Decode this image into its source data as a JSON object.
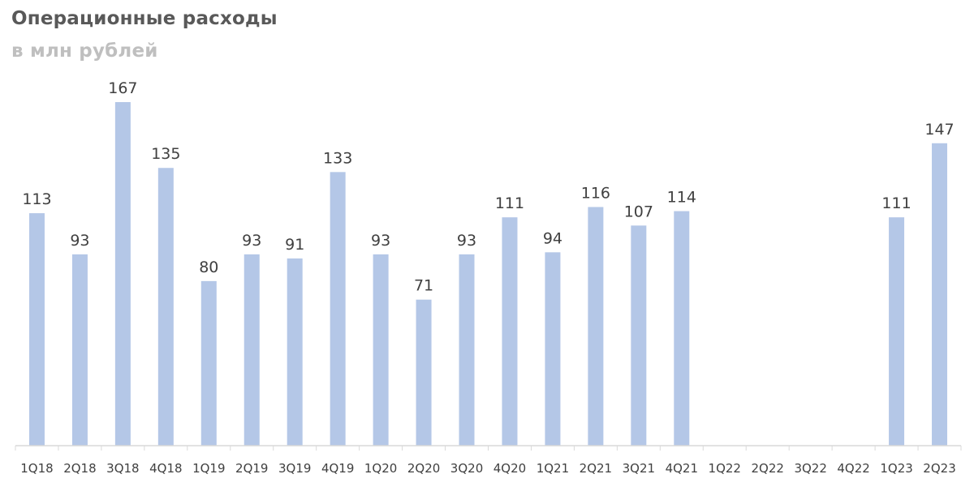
{
  "chart_data": {
    "type": "bar",
    "title": "Операционные расходы",
    "subtitle": "в млн рублей",
    "categories": [
      "1Q18",
      "2Q18",
      "3Q18",
      "4Q18",
      "1Q19",
      "2Q19",
      "3Q19",
      "4Q19",
      "1Q20",
      "2Q20",
      "3Q20",
      "4Q20",
      "1Q21",
      "2Q21",
      "3Q21",
      "4Q21",
      "1Q22",
      "2Q22",
      "3Q22",
      "4Q22",
      "1Q23",
      "2Q23"
    ],
    "values": [
      113,
      93,
      167,
      135,
      80,
      93,
      91,
      133,
      93,
      71,
      93,
      111,
      94,
      116,
      107,
      114,
      null,
      null,
      null,
      null,
      111,
      147
    ],
    "xlabel": "",
    "ylabel": "",
    "ylim": [
      0,
      167
    ],
    "grid": false,
    "legend": "none",
    "bar_color": "#b4c7e7",
    "axis_color": "#d9d9d9"
  }
}
